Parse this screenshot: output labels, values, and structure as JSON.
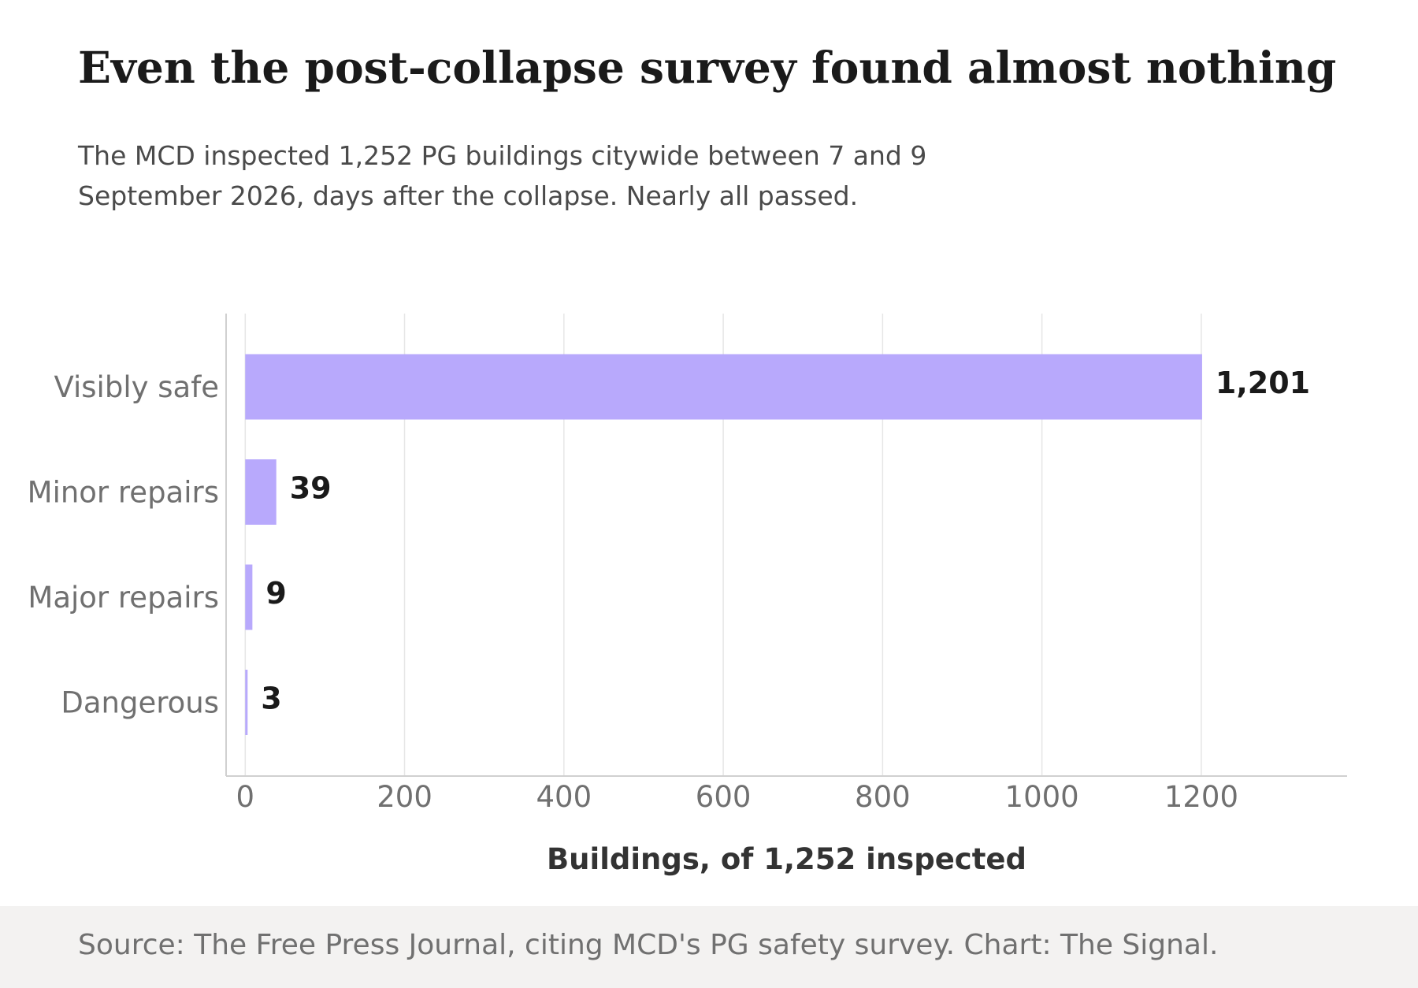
{
  "title": "Even the post-collapse survey found almost nothing",
  "subtitle": "The MCD inspected 1,252 PG buildings citywide between 7 and 9 September 2026, days after the collapse. Nearly all passed.",
  "source": "Source: The Free Press Journal, citing MCD's PG safety survey. Chart: The Signal.",
  "colors": {
    "bar": "#b8a9fc",
    "grid": "#e6e6e6",
    "axis": "#d0d0d0",
    "category_text": "#707070",
    "value_text": "#1a1a1a",
    "xlabel_text": "#333333"
  },
  "chart_data": {
    "type": "bar",
    "orientation": "horizontal",
    "categories": [
      "Visibly safe",
      "Minor repairs",
      "Major repairs",
      "Dangerous"
    ],
    "values": [
      1201,
      39,
      9,
      3
    ],
    "value_labels": [
      "1,201",
      "39",
      "9",
      "3"
    ],
    "xlabel": "Buildings, of 1,252 inspected",
    "xlim": [
      -24,
      1383
    ],
    "xticks": [
      0,
      200,
      400,
      600,
      800,
      1000,
      1200
    ],
    "grid": true
  }
}
